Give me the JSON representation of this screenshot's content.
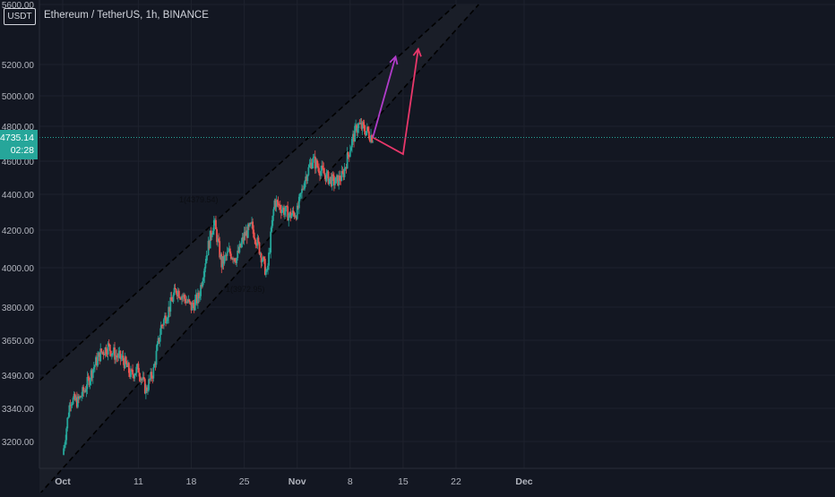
{
  "header": {
    "symbol_badge": "USDT",
    "title": "Ethereum / TetherUS, 1h, BINANCE"
  },
  "price_tag": {
    "price": "4735.14",
    "countdown": "02:28"
  },
  "annotations": {
    "high_label": "1(4379.54)",
    "low_label": "1(3972.95)"
  },
  "colors": {
    "background": "#131722",
    "bull": "#26a69a",
    "bear": "#ef5350",
    "purple_arrow": "#b03cc9",
    "pink_arrow": "#e8376a",
    "channel_line": "#000000",
    "grid": "#1e222d"
  },
  "chart_data": {
    "type": "candlestick",
    "title": "Ethereum / TetherUS, 1h, BINANCE",
    "xlabel": "",
    "ylabel": "",
    "y_scale": "log",
    "ylim": [
      3080,
      5600
    ],
    "y_ticks": [
      5600,
      5200,
      5000,
      4800,
      4600,
      4400,
      4200,
      4000,
      3800,
      3650,
      3490,
      3340,
      3200
    ],
    "y_tick_labels": [
      "5600.00",
      "5200.00",
      "5000.00",
      "4800.00",
      "4600.00",
      "4400.00",
      "4200.00",
      "4000.00",
      "3800.00",
      "3650.00",
      "3490.00",
      "3340.00",
      "3200.00"
    ],
    "x_ticks": [
      "Oct",
      "11",
      "18",
      "25",
      "Nov",
      "8",
      "15",
      "22",
      "Dec"
    ],
    "x_tick_dates": [
      "2021-10-01",
      "2021-10-11",
      "2021-10-18",
      "2021-10-25",
      "2021-11-01",
      "2021-11-08",
      "2021-11-15",
      "2021-11-22",
      "2021-12-01"
    ],
    "current_price": 4735.14,
    "price_path": [
      [
        "2021-10-01",
        3140
      ],
      [
        "2021-10-02",
        3380
      ],
      [
        "2021-10-03",
        3370
      ],
      [
        "2021-10-04",
        3430
      ],
      [
        "2021-10-05",
        3520
      ],
      [
        "2021-10-06",
        3590
      ],
      [
        "2021-10-07",
        3620
      ],
      [
        "2021-10-08",
        3580
      ],
      [
        "2021-10-09",
        3560
      ],
      [
        "2021-10-10",
        3490
      ],
      [
        "2021-10-11",
        3520
      ],
      [
        "2021-10-12",
        3420
      ],
      [
        "2021-10-13",
        3510
      ],
      [
        "2021-10-14",
        3710
      ],
      [
        "2021-10-15",
        3790
      ],
      [
        "2021-10-16",
        3890
      ],
      [
        "2021-10-17",
        3850
      ],
      [
        "2021-10-18",
        3800
      ],
      [
        "2021-10-19",
        3850
      ],
      [
        "2021-10-20",
        4070
      ],
      [
        "2021-10-21",
        4250
      ],
      [
        "2021-10-22",
        4020
      ],
      [
        "2021-10-23",
        4080
      ],
      [
        "2021-10-24",
        4050
      ],
      [
        "2021-10-25",
        4170
      ],
      [
        "2021-10-26",
        4220
      ],
      [
        "2021-10-27",
        4100
      ],
      [
        "2021-10-28",
        3960
      ],
      [
        "2021-10-29",
        4360
      ],
      [
        "2021-10-30",
        4320
      ],
      [
        "2021-10-31",
        4280
      ],
      [
        "2021-11-01",
        4300
      ],
      [
        "2021-11-02",
        4490
      ],
      [
        "2021-11-03",
        4610
      ],
      [
        "2021-11-04",
        4550
      ],
      [
        "2021-11-05",
        4500
      ],
      [
        "2021-11-06",
        4470
      ],
      [
        "2021-11-07",
        4510
      ],
      [
        "2021-11-08",
        4680
      ],
      [
        "2021-11-09",
        4810
      ],
      [
        "2021-11-10",
        4780
      ],
      [
        "2021-11-11",
        4735
      ]
    ],
    "channel": {
      "upper": [
        [
          "2021-09-30",
          3530
        ],
        [
          "2021-11-22",
          5600
        ]
      ],
      "lower": [
        [
          "2021-10-01",
          3080
        ],
        [
          "2021-11-25",
          5600
        ]
      ]
    },
    "arrows": [
      {
        "color": "#b03cc9",
        "from": [
          "2021-11-11",
          4735
        ],
        "to": [
          "2021-11-14",
          5250
        ]
      },
      {
        "color": "#e8376a",
        "from": [
          "2021-11-11",
          4735
        ],
        "via": [
          "2021-11-15",
          4640
        ],
        "to": [
          "2021-11-17",
          5300
        ]
      }
    ]
  }
}
